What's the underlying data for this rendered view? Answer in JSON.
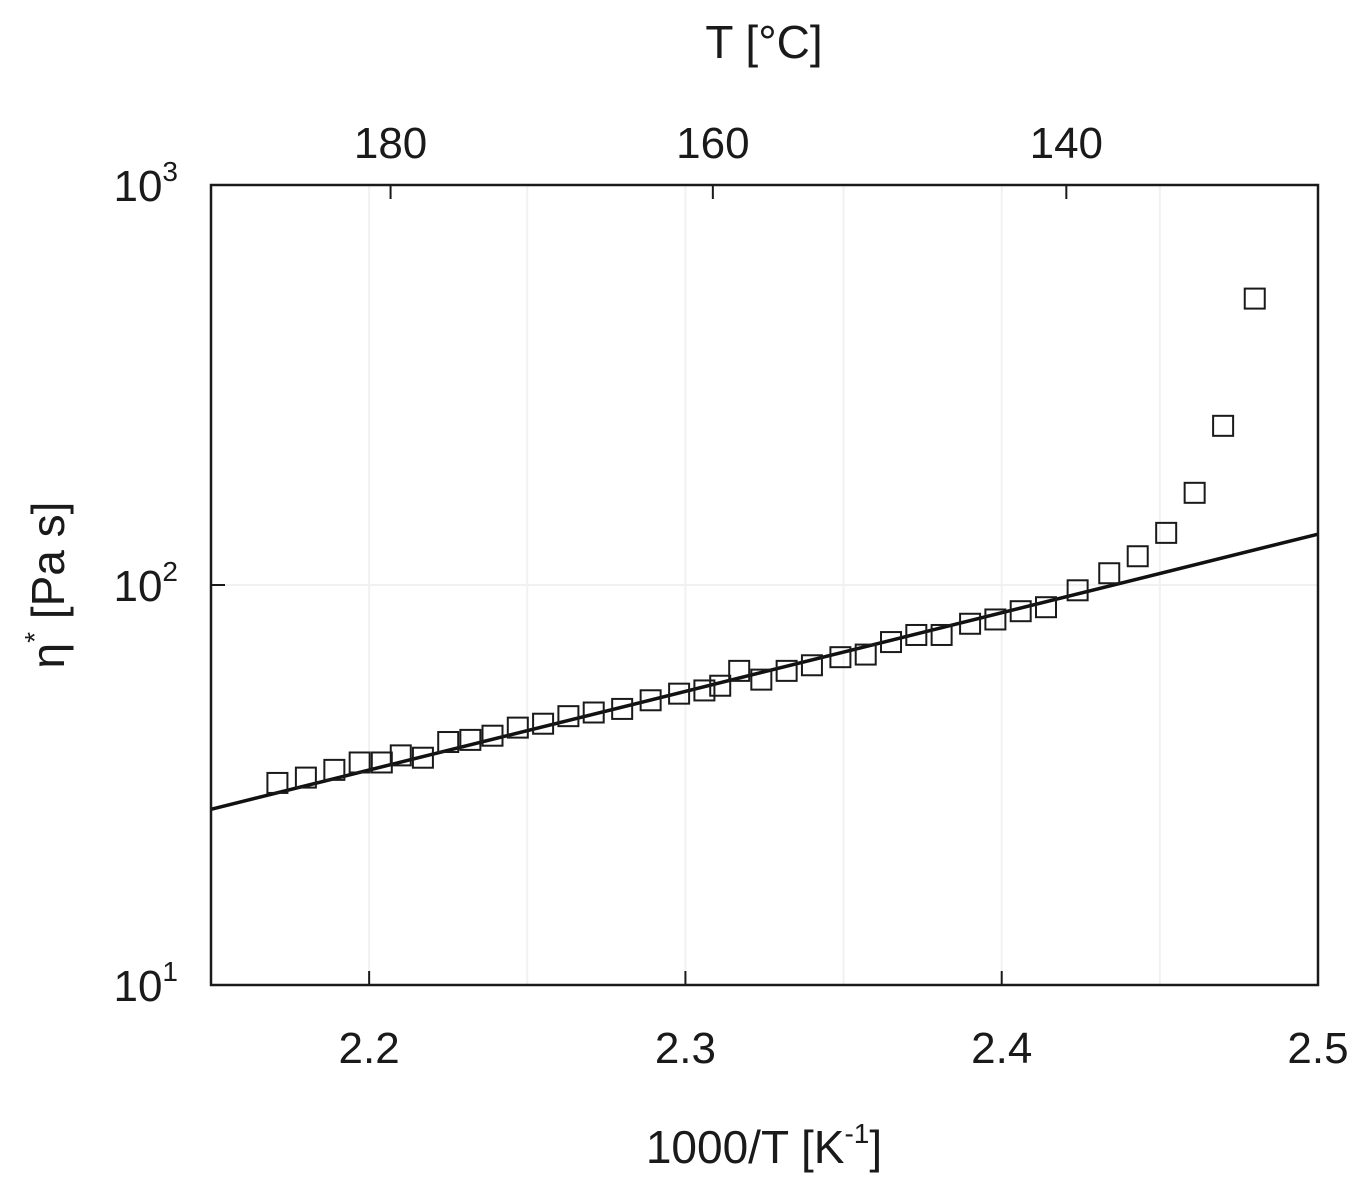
{
  "chart_data": {
    "type": "scatter",
    "x_axis": {
      "label_base": "1000/T [K",
      "label_sup": "-1",
      "label_end": "]",
      "range": [
        2.15,
        2.5
      ],
      "ticks": [
        2.2,
        2.3,
        2.4,
        2.5
      ],
      "tick_labels": [
        "2.2",
        "2.3",
        "2.4",
        "2.5"
      ]
    },
    "top_axis": {
      "label": "T [°C]",
      "ticks_celsius": [
        180,
        160,
        140
      ],
      "tick_labels": [
        "180",
        "160",
        "140"
      ]
    },
    "y_axis": {
      "label_base": "η",
      "label_sup": "*",
      "label_end": " [Pa s]",
      "scale": "log",
      "range": [
        10,
        1000
      ],
      "ticks": [
        10,
        100,
        1000
      ],
      "tick_base": "10",
      "tick_exponents": [
        "1",
        "2",
        "3"
      ]
    },
    "grid": true,
    "series": [
      {
        "kind": "markers",
        "marker": "open-square",
        "x": [
          2.171,
          2.18,
          2.189,
          2.197,
          2.204,
          2.21,
          2.217,
          2.225,
          2.232,
          2.239,
          2.247,
          2.255,
          2.263,
          2.271,
          2.28,
          2.289,
          2.298,
          2.306,
          2.311,
          2.317,
          2.324,
          2.332,
          2.34,
          2.349,
          2.357,
          2.365,
          2.373,
          2.381,
          2.39,
          2.398,
          2.406,
          2.414,
          2.424,
          2.434,
          2.443,
          2.452,
          2.461,
          2.47,
          2.48
        ],
        "y": [
          32,
          33,
          34.5,
          36,
          36,
          37.5,
          37,
          40.5,
          41,
          42,
          44,
          45,
          47,
          48,
          49,
          51.5,
          53.5,
          54.5,
          56,
          61,
          58,
          61,
          63,
          66,
          67,
          72,
          75,
          75,
          80,
          82,
          86,
          88,
          97,
          107,
          118,
          135,
          170,
          250,
          520
        ]
      },
      {
        "kind": "line",
        "x": [
          2.15,
          2.5
        ],
        "y": [
          27.5,
          134
        ]
      }
    ]
  }
}
